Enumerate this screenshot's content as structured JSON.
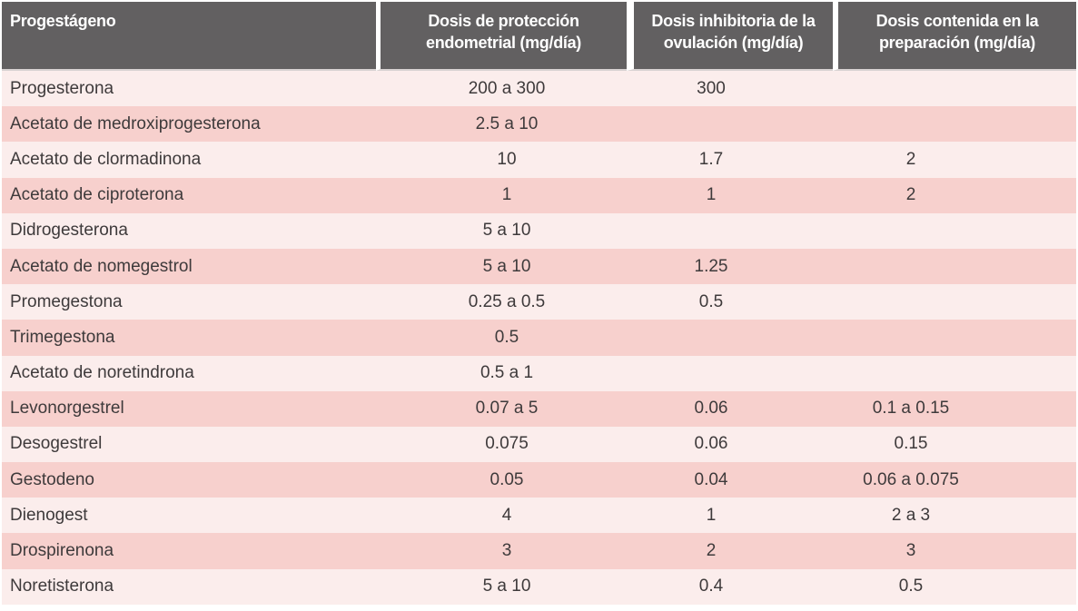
{
  "table": {
    "columns": [
      {
        "label": "Progestágeno"
      },
      {
        "label": "Dosis de protección endometrial (mg/día)"
      },
      {
        "label": "Dosis inhibitoria de la ovulación (mg/día)"
      },
      {
        "label": "Dosis contenida en la preparación (mg/día)"
      }
    ],
    "rows": [
      {
        "name": "Progesterona",
        "endometrial": "200 a 300",
        "ovulation": "300",
        "preparation": ""
      },
      {
        "name": "Acetato de medroxiprogesterona",
        "endometrial": "2.5 a 10",
        "ovulation": "",
        "preparation": ""
      },
      {
        "name": "Acetato de clormadinona",
        "endometrial": "10",
        "ovulation": "1.7",
        "preparation": "2"
      },
      {
        "name": "Acetato de ciproterona",
        "endometrial": "1",
        "ovulation": "1",
        "preparation": "2"
      },
      {
        "name": "Didrogesterona",
        "endometrial": "5 a 10",
        "ovulation": "",
        "preparation": ""
      },
      {
        "name": "Acetato de nomegestrol",
        "endometrial": "5 a 10",
        "ovulation": "1.25",
        "preparation": ""
      },
      {
        "name": "Promegestona",
        "endometrial": "0.25 a 0.5",
        "ovulation": "0.5",
        "preparation": ""
      },
      {
        "name": "Trimegestona",
        "endometrial": "0.5",
        "ovulation": "",
        "preparation": ""
      },
      {
        "name": "Acetato de noretindrona",
        "endometrial": "0.5 a 1",
        "ovulation": "",
        "preparation": ""
      },
      {
        "name": "Levonorgestrel",
        "endometrial": "0.07 a 5",
        "ovulation": "0.06",
        "preparation": "0.1 a 0.15"
      },
      {
        "name": "Desogestrel",
        "endometrial": "0.075",
        "ovulation": "0.06",
        "preparation": "0.15"
      },
      {
        "name": "Gestodeno",
        "endometrial": "0.05",
        "ovulation": "0.04",
        "preparation": "0.06 a 0.075"
      },
      {
        "name": "Dienogest",
        "endometrial": "4",
        "ovulation": "1",
        "preparation": "2 a 3"
      },
      {
        "name": "Drospirenona",
        "endometrial": "3",
        "ovulation": "2",
        "preparation": "3"
      },
      {
        "name": "Noretisterona",
        "endometrial": "5 a 10",
        "ovulation": "0.4",
        "preparation": "0.5"
      }
    ]
  },
  "colors": {
    "header_bg": "#626061",
    "header_text": "#ffffff",
    "row_light": "#fbedec",
    "row_dark": "#f7d0cd",
    "body_text": "#3e3a3b",
    "header_divider": "#d8d2d2"
  }
}
